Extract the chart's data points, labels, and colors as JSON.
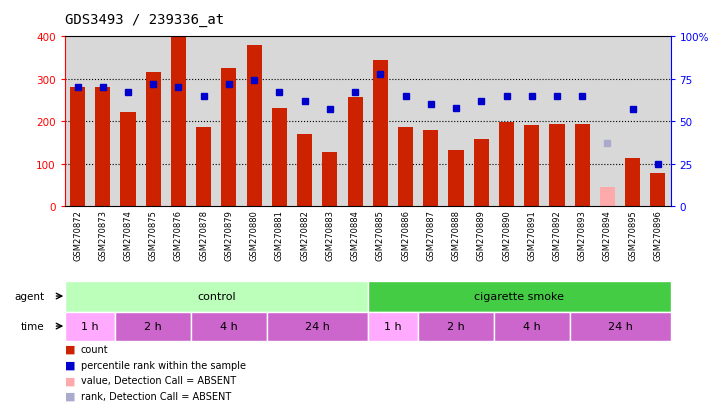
{
  "title": "GDS3493 / 239336_at",
  "samples": [
    "GSM270872",
    "GSM270873",
    "GSM270874",
    "GSM270875",
    "GSM270876",
    "GSM270878",
    "GSM270879",
    "GSM270880",
    "GSM270881",
    "GSM270882",
    "GSM270883",
    "GSM270884",
    "GSM270885",
    "GSM270886",
    "GSM270887",
    "GSM270888",
    "GSM270889",
    "GSM270890",
    "GSM270891",
    "GSM270892",
    "GSM270893",
    "GSM270894",
    "GSM270895",
    "GSM270896"
  ],
  "counts": [
    280,
    280,
    222,
    315,
    400,
    185,
    325,
    380,
    232,
    170,
    128,
    258,
    345,
    185,
    178,
    133,
    157,
    198,
    190,
    193,
    193,
    45,
    112,
    78
  ],
  "absent_count": [
    false,
    false,
    false,
    false,
    false,
    false,
    false,
    false,
    false,
    false,
    false,
    false,
    false,
    false,
    false,
    false,
    false,
    false,
    false,
    false,
    false,
    true,
    false,
    false
  ],
  "percentile_ranks": [
    70,
    70,
    67,
    72,
    70,
    65,
    72,
    74,
    67,
    62,
    57,
    67,
    78,
    65,
    60,
    58,
    62,
    65,
    65,
    65,
    65,
    37,
    57,
    25
  ],
  "absent_rank": [
    false,
    false,
    false,
    false,
    false,
    false,
    false,
    false,
    false,
    false,
    false,
    false,
    false,
    false,
    false,
    false,
    false,
    false,
    false,
    false,
    false,
    true,
    false,
    false
  ],
  "bar_color_normal": "#cc2200",
  "bar_color_absent": "#ffaaaa",
  "dot_color_normal": "#0000cc",
  "dot_color_absent": "#aaaacc",
  "ylim_left": [
    0,
    400
  ],
  "ylim_right": [
    0,
    100
  ],
  "yticks_left": [
    0,
    100,
    200,
    300,
    400
  ],
  "yticks_right": [
    0,
    25,
    50,
    75,
    100
  ],
  "agent_groups": [
    {
      "label": "control",
      "start": 0,
      "end": 12,
      "color": "#bbffbb"
    },
    {
      "label": "cigarette smoke",
      "start": 12,
      "end": 24,
      "color": "#44cc44"
    }
  ],
  "time_groups": [
    {
      "label": "1 h",
      "start": 0,
      "end": 2,
      "color": "#ffaaff"
    },
    {
      "label": "2 h",
      "start": 2,
      "end": 5,
      "color": "#cc66cc"
    },
    {
      "label": "4 h",
      "start": 5,
      "end": 8,
      "color": "#cc66cc"
    },
    {
      "label": "24 h",
      "start": 8,
      "end": 12,
      "color": "#cc66cc"
    },
    {
      "label": "1 h",
      "start": 12,
      "end": 14,
      "color": "#ffaaff"
    },
    {
      "label": "2 h",
      "start": 14,
      "end": 17,
      "color": "#cc66cc"
    },
    {
      "label": "4 h",
      "start": 17,
      "end": 20,
      "color": "#cc66cc"
    },
    {
      "label": "24 h",
      "start": 20,
      "end": 24,
      "color": "#cc66cc"
    }
  ],
  "background_color": "#d8d8d8",
  "title_fontsize": 10,
  "legend_items": [
    {
      "color": "#cc2200",
      "label": "count"
    },
    {
      "color": "#0000cc",
      "label": "percentile rank within the sample"
    },
    {
      "color": "#ffaaaa",
      "label": "value, Detection Call = ABSENT"
    },
    {
      "color": "#aaaacc",
      "label": "rank, Detection Call = ABSENT"
    }
  ]
}
